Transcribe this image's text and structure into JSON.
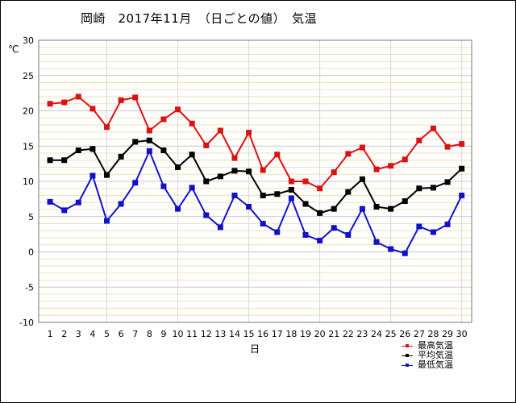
{
  "chart_data": {
    "type": "line",
    "title": "岡崎　2017年11月　（日ごとの値）　気温",
    "xlabel": "日",
    "ylabel": "℃",
    "x": [
      1,
      2,
      3,
      4,
      5,
      6,
      7,
      8,
      9,
      10,
      11,
      12,
      13,
      14,
      15,
      16,
      17,
      18,
      19,
      20,
      21,
      22,
      23,
      24,
      25,
      26,
      27,
      28,
      29,
      30
    ],
    "xlim": [
      0.2,
      30.7
    ],
    "ylim": [
      -10,
      30
    ],
    "yticks": [
      30,
      25,
      20,
      15,
      10,
      5,
      0,
      -5,
      -10
    ],
    "grid": true,
    "legend_position": "bottom-right",
    "series": [
      {
        "name": "最高気温",
        "color": "#dd1111",
        "values": [
          21.0,
          21.2,
          22.0,
          20.3,
          17.7,
          21.5,
          21.9,
          17.2,
          18.8,
          20.2,
          18.2,
          15.1,
          17.2,
          13.3,
          16.9,
          11.6,
          13.8,
          10.0,
          10.0,
          9.0,
          11.3,
          13.9,
          14.8,
          11.7,
          12.2,
          13.1,
          15.8,
          17.5,
          14.9,
          15.3
        ]
      },
      {
        "name": "平均気温",
        "color": "#000000",
        "values": [
          13.0,
          13.0,
          14.4,
          14.6,
          10.9,
          13.5,
          15.6,
          15.8,
          14.4,
          12.0,
          13.8,
          10.0,
          10.7,
          11.5,
          11.4,
          8.0,
          8.2,
          8.8,
          6.8,
          5.5,
          6.1,
          8.5,
          10.3,
          6.4,
          6.1,
          7.2,
          9.0,
          9.1,
          9.9,
          11.8
        ]
      },
      {
        "name": "最低気温",
        "color": "#1111cc",
        "values": [
          7.1,
          5.9,
          7.0,
          10.8,
          4.4,
          6.8,
          9.8,
          14.3,
          9.3,
          6.1,
          9.1,
          5.2,
          3.5,
          8.0,
          6.4,
          4.0,
          2.8,
          7.6,
          2.4,
          1.6,
          3.4,
          2.4,
          6.1,
          1.4,
          0.4,
          -0.2,
          3.6,
          2.8,
          3.9,
          8.0
        ]
      }
    ]
  }
}
